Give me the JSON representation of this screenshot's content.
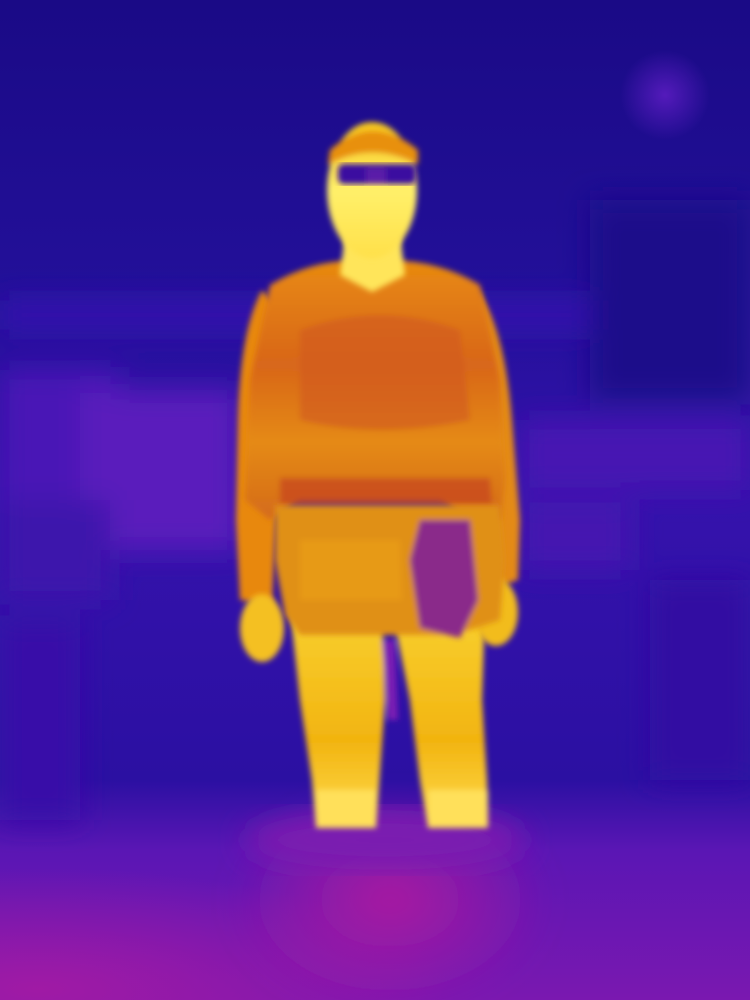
{
  "image": {
    "kind": "thermal-camera-photo",
    "palette": "ironbow",
    "subject": "person-standing",
    "colors": {
      "cold_deep": "#0f0572",
      "cold": "#2a10a8",
      "cool": "#4d14b8",
      "mid_cool": "#6d1ab8",
      "warm_floor": "#9a1aa6",
      "mid": "#c2382f",
      "warm": "#e07a10",
      "hot": "#f2b40c",
      "hottest": "#fff06a",
      "glasses": "#3b0aa0"
    }
  }
}
